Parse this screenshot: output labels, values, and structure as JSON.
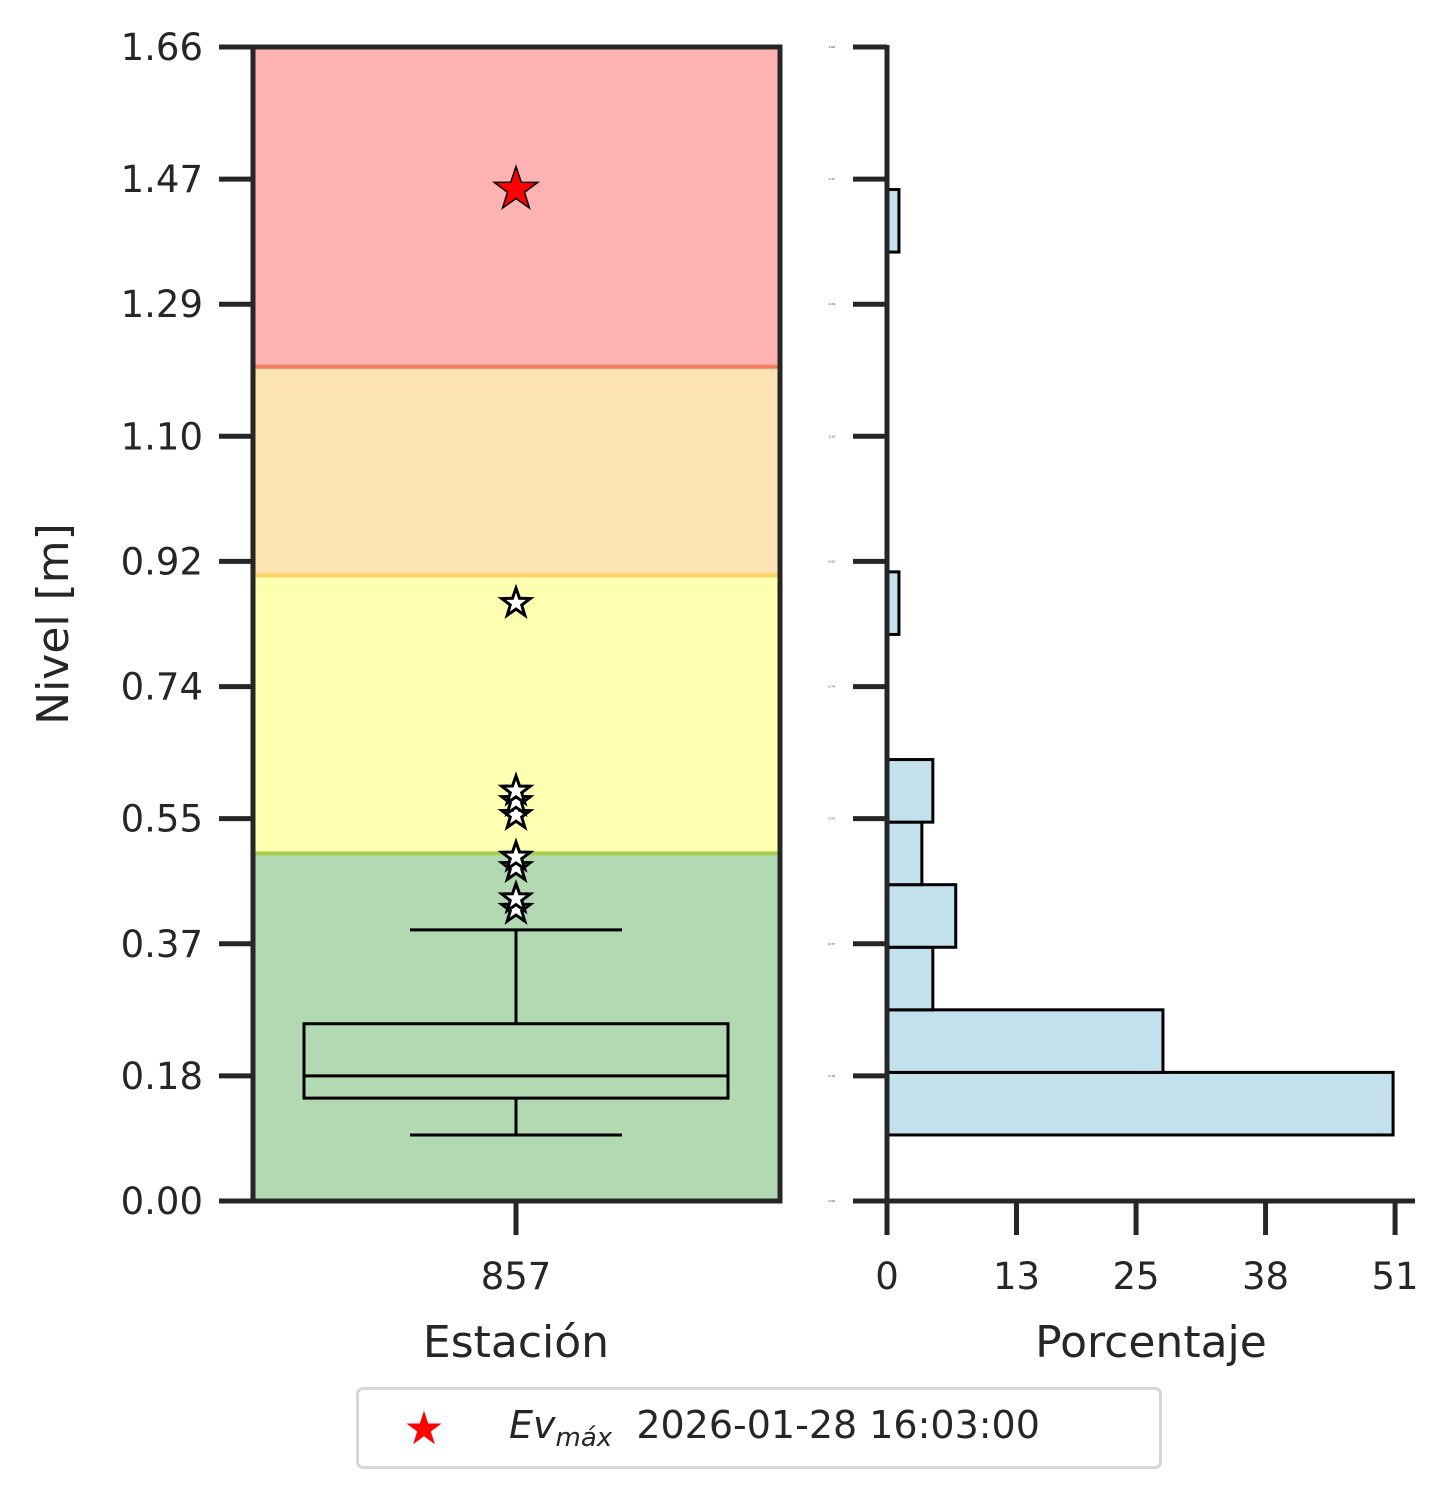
{
  "chart_data": [
    {
      "type": "box",
      "xlabel": "Estación",
      "ylabel": "Nivel [m]",
      "ylim": [
        0.0,
        1.66
      ],
      "yticks": [
        "0.00",
        "0.18",
        "0.37",
        "0.55",
        "0.74",
        "0.92",
        "1.10",
        "1.29",
        "1.47",
        "1.66"
      ],
      "categories": [
        "857"
      ],
      "threshold_bands": [
        {
          "from": 0.0,
          "to": 0.5,
          "color": "#b3d9b3"
        },
        {
          "from": 0.5,
          "to": 0.9,
          "color": "#feffb0"
        },
        {
          "from": 0.9,
          "to": 1.2,
          "color": "#fee3b3"
        },
        {
          "from": 1.2,
          "to": 1.66,
          "color": "#feb2b2"
        }
      ],
      "threshold_lines": [
        {
          "value": 0.5,
          "color": "#a8d04a"
        },
        {
          "value": 0.9,
          "color": "#fbd360"
        },
        {
          "value": 1.2,
          "color": "#f47a60"
        }
      ],
      "box": {
        "whisker_low": 0.095,
        "q1": 0.148,
        "median": 0.18,
        "q3": 0.255,
        "whisker_high": 0.39
      },
      "outliers": [
        0.42,
        0.435,
        0.48,
        0.495,
        0.555,
        0.575,
        0.59,
        0.86
      ],
      "max_event": {
        "value": 1.455,
        "color": "#ff0000"
      }
    },
    {
      "type": "histogram",
      "orientation": "horizontal",
      "xlabel": "Porcentaje",
      "xticks": [
        "0",
        "13",
        "25",
        "38",
        "51"
      ],
      "xlim": [
        0,
        53
      ],
      "yticks": [
        "0.00",
        "0.18",
        "0.37",
        "0.55",
        "0.74",
        "0.92",
        "1.10",
        "1.29",
        "1.47",
        "1.66"
      ],
      "bar_color": "#c2e1ec",
      "bins": [
        {
          "from": 0.095,
          "to": 0.185,
          "value": 50.8
        },
        {
          "from": 0.185,
          "to": 0.275,
          "value": 27.7
        },
        {
          "from": 0.275,
          "to": 0.365,
          "value": 4.6
        },
        {
          "from": 0.365,
          "to": 0.455,
          "value": 6.9
        },
        {
          "from": 0.455,
          "to": 0.545,
          "value": 3.5
        },
        {
          "from": 0.545,
          "to": 0.635,
          "value": 4.6
        },
        {
          "from": 0.815,
          "to": 0.905,
          "value": 1.2
        },
        {
          "from": 1.365,
          "to": 1.455,
          "value": 1.2
        }
      ]
    }
  ],
  "legend": {
    "symbol": "star-icon",
    "label_main": "Ev",
    "label_sub": "máx",
    "date": "2026-01-28 16:03:00",
    "color": "#ff0000"
  }
}
